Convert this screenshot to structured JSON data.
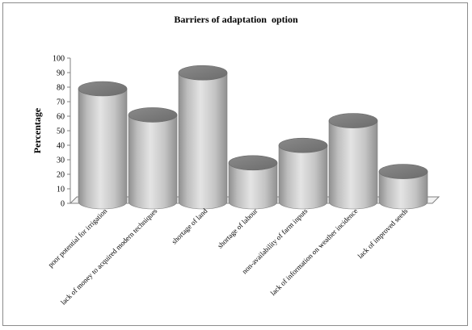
{
  "chart_data": {
    "type": "bar",
    "style": "3d-cylinder",
    "title": "Barriers of adaptation  option",
    "xlabel": "",
    "ylabel": "Percentage",
    "ylim": [
      0,
      100
    ],
    "yticks": [
      0,
      10,
      20,
      30,
      40,
      50,
      60,
      70,
      80,
      90,
      100
    ],
    "grid": false,
    "legend": "none",
    "categories": [
      "poor potential for irrigation",
      "lack of money to acquired modern techniques",
      "shortage of land",
      "shortage of labour",
      "non-availability of farm inputs",
      "lack of information on weather incidence",
      "lack of improved seeds"
    ],
    "values": [
      80,
      62,
      91,
      29,
      41,
      58,
      23
    ],
    "colors": {
      "bar_light": "#e6e6e6",
      "bar_mid": "#bdbdbd",
      "bar_dark": "#8a8a8a",
      "top": "#7a7a7a",
      "axis": "#808080",
      "border": "#8c8c8c"
    }
  }
}
